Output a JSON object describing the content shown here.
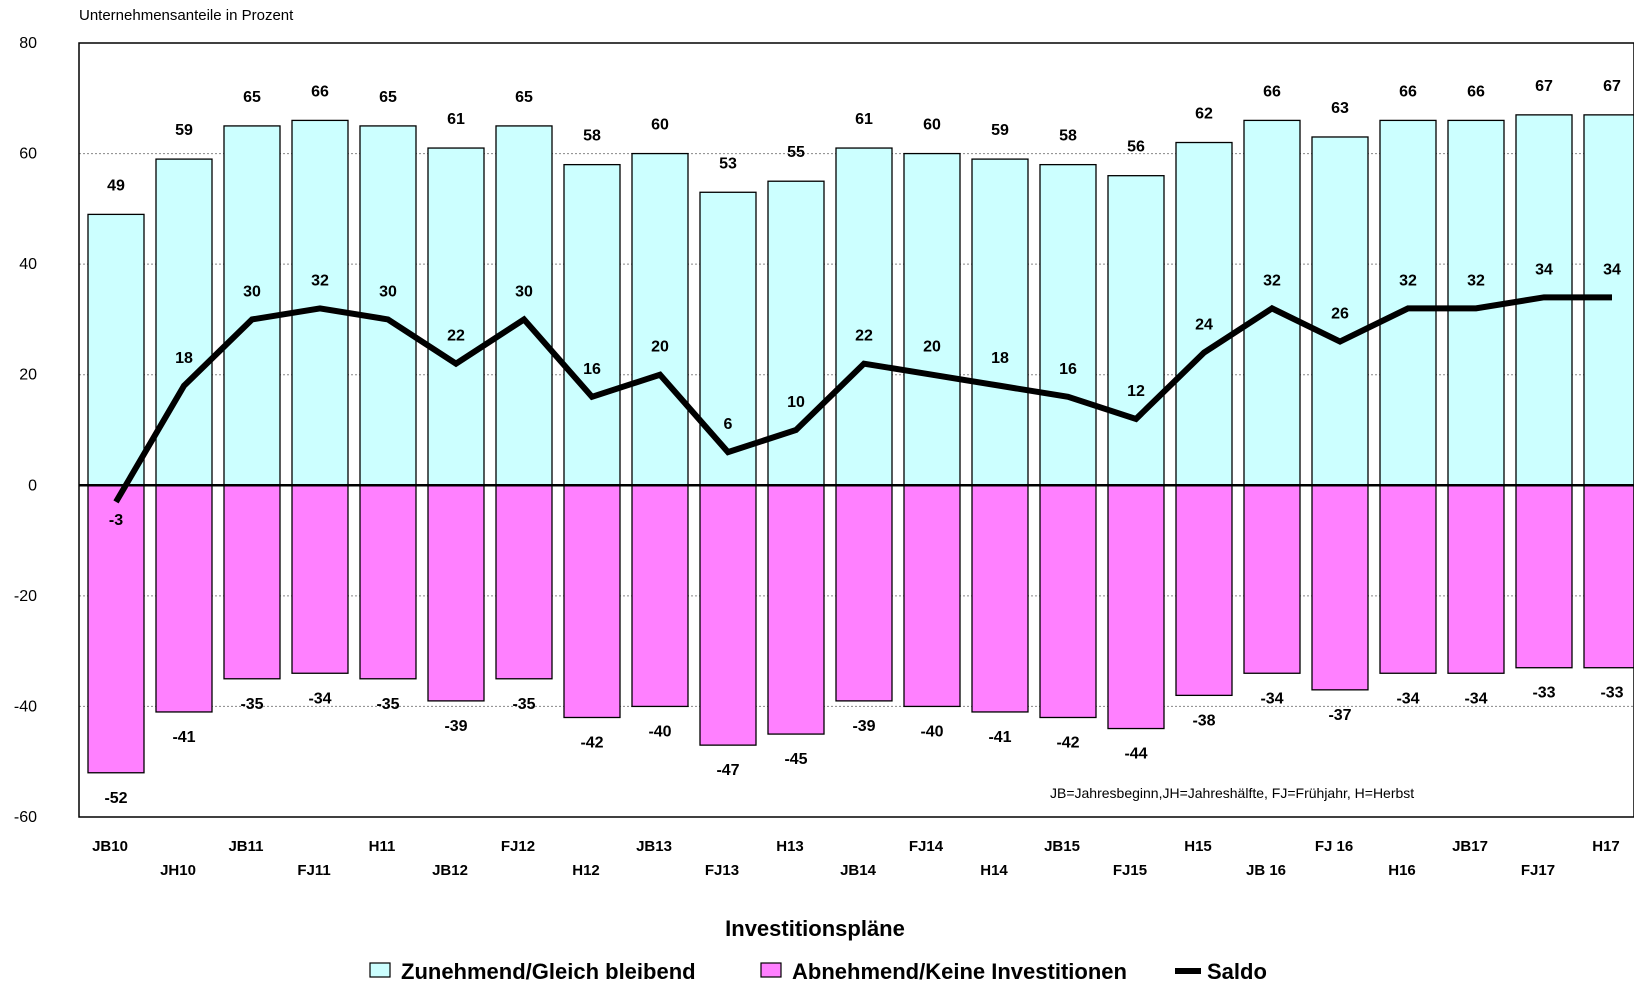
{
  "chart_data": {
    "type": "bar",
    "title": "",
    "ylabel": "Unternehmensanteile in Prozent",
    "xlabel": "Investitionspläne",
    "ylim": [
      -60,
      80
    ],
    "yticks": [
      80,
      60,
      40,
      20,
      0,
      -20,
      -40,
      -60
    ],
    "grid": "horizontal dotted",
    "legend_position": "bottom",
    "categories": [
      "JB10",
      "JH10",
      "JB11",
      "FJ11",
      "H11",
      "JB12",
      "FJ12",
      "H12",
      "JB13",
      "FJ13",
      "H13",
      "JB14",
      "FJ14",
      "H14",
      "JB15",
      "FJ15",
      "H15",
      "JB 16",
      "FJ 16",
      "H16",
      "JB17",
      "FJ17",
      "H17"
    ],
    "series": [
      {
        "name": "Zunehmend/Gleich bleibend",
        "type": "bar",
        "color": "#ccffff",
        "values": [
          49,
          59,
          65,
          66,
          65,
          61,
          65,
          58,
          60,
          53,
          55,
          61,
          60,
          59,
          58,
          56,
          62,
          66,
          63,
          66,
          66,
          67,
          67
        ]
      },
      {
        "name": "Abnehmend/Keine Investitionen",
        "type": "bar",
        "color": "#ff80ff",
        "values": [
          -52,
          -41,
          -35,
          -34,
          -35,
          -39,
          -35,
          -42,
          -40,
          -47,
          -45,
          -39,
          -40,
          -41,
          -42,
          -44,
          -38,
          -34,
          -37,
          -34,
          -34,
          -33,
          -33
        ]
      },
      {
        "name": "Saldo",
        "type": "line",
        "color": "#000000",
        "values": [
          -3,
          18,
          30,
          32,
          30,
          22,
          30,
          16,
          20,
          6,
          10,
          22,
          20,
          18,
          16,
          12,
          24,
          32,
          26,
          32,
          32,
          34,
          34
        ]
      }
    ],
    "annotation": "JB=Jahresbeginn,JH=Jahreshälfte, FJ=Frühjahr, H=Herbst"
  }
}
